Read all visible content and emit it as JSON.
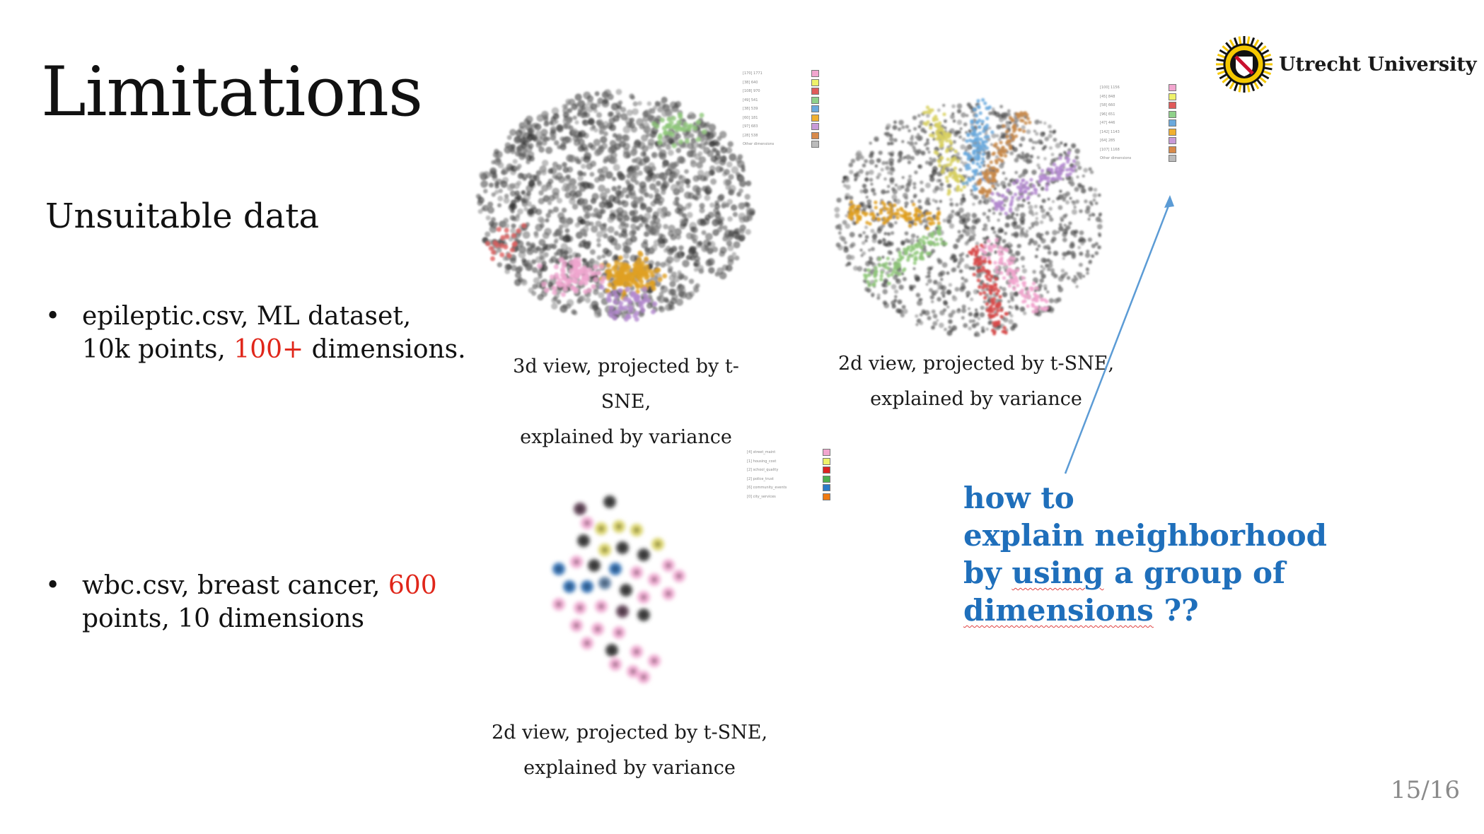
{
  "title": "Limitations",
  "subtitle": "Unsuitable data",
  "bullets": [
    {
      "symbol": "•",
      "line1": "epileptic.csv, ML dataset,",
      "line2a": "10k points, ",
      "highlight": "100+",
      "line2b": " dimensions."
    },
    {
      "symbol": "•",
      "line1a": "wbc.csv, breast cancer, ",
      "highlight": "600",
      "line2": "points, 10 dimensions"
    }
  ],
  "captions": {
    "plot1": {
      "line1": "3d view, projected by t-SNE,",
      "line2": "explained by variance"
    },
    "plot2": {
      "line1": "2d view, projected by t-SNE,",
      "line2": "explained by variance"
    },
    "plot3": {
      "line1": "2d view, projected by t-SNE,",
      "line2": "explained by variance"
    }
  },
  "question": {
    "line1": "how to",
    "line2": "explain neighborhood",
    "line3a": "by ",
    "line3b": "using",
    "line3c": " a group of ",
    "line3d": "dimensions",
    "line3e": " ??"
  },
  "logo": {
    "text": "Utrecht University"
  },
  "page_number": "15/16",
  "colors": {
    "accent_blue": "#1f6fbb",
    "highlight_red": "#e0261a",
    "logo_gold": "#f5c800"
  },
  "legends": {
    "plot1": [
      {
        "label": "[170] 1771",
        "color": "#f2a6cf"
      },
      {
        "label": "[38] 640",
        "color": "#eef26a"
      },
      {
        "label": "[108] 970",
        "color": "#e05a5a"
      },
      {
        "label": "[49] 541",
        "color": "#8fd18a"
      },
      {
        "label": "[38] 539",
        "color": "#6aa9dd"
      },
      {
        "label": "[60] 181",
        "color": "#f0b030"
      },
      {
        "label": "[97] 683",
        "color": "#c89ad8"
      },
      {
        "label": "[28] 538",
        "color": "#d88a4a"
      },
      {
        "label": "Other dimensions",
        "color": "#bbbbbb"
      }
    ],
    "plot2": [
      {
        "label": "[100] 1156",
        "color": "#f2a6cf"
      },
      {
        "label": "[45] 848",
        "color": "#eef26a"
      },
      {
        "label": "[58] 660",
        "color": "#e05a5a"
      },
      {
        "label": "[96] 651",
        "color": "#8fd18a"
      },
      {
        "label": "[47] 446",
        "color": "#6aa9dd"
      },
      {
        "label": "[142] 1143",
        "color": "#f0b030"
      },
      {
        "label": "[64] 285",
        "color": "#c89ad8"
      },
      {
        "label": "[107] 1168",
        "color": "#d88a4a"
      },
      {
        "label": "Other dimensions",
        "color": "#bbbbbb"
      }
    ],
    "plot3": [
      {
        "label": "[4] street_maint",
        "color": "#f2a6cf"
      },
      {
        "label": "[1] housing_cost",
        "color": "#eef26a"
      },
      {
        "label": "[2] school_quality",
        "color": "#dd2222"
      },
      {
        "label": "[2] police_trust",
        "color": "#4caf50"
      },
      {
        "label": "[6] community_events",
        "color": "#2a7ac8"
      },
      {
        "label": "[0] city_services",
        "color": "#f07a10"
      }
    ]
  }
}
